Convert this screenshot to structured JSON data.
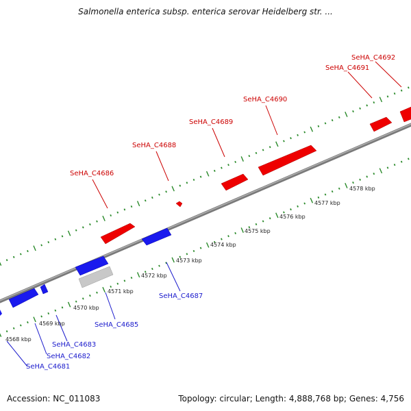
{
  "title": "Salmonella enterica subsp. enterica serovar Heidelberg str. ...",
  "footer": {
    "accession": "Accession: NC_011083",
    "summary": "Topology: circular; Length: 4,888,768 bp; Genes: 4,756"
  },
  "colors": {
    "forward_gene": "#ee0000",
    "reverse_gene": "#1a1aee",
    "other_feature": "#c8c8c8",
    "backbone": "#888888",
    "tick": "#2a8a2a",
    "forward_label": "#cc0000",
    "reverse_label": "#1a1acc"
  },
  "scale_labels": [
    "4568 kbp",
    "4569 kbp",
    "4570 kbp",
    "4571 kbp",
    "4572 kbp",
    "4573 kbp",
    "4574 kbp",
    "4575 kbp",
    "4576 kbp",
    "4577 kbp",
    "4578 kbp"
  ],
  "forward_labels": [
    "SeHA_C4686",
    "SeHA_C4688",
    "SeHA_C4689",
    "SeHA_C4690",
    "SeHA_C4691",
    "SeHA_C4692"
  ],
  "reverse_labels": [
    "SeHA_C4681",
    "SeHA_C4682",
    "SeHA_C4683",
    "SeHA_C4685",
    "SeHA_C4687"
  ]
}
